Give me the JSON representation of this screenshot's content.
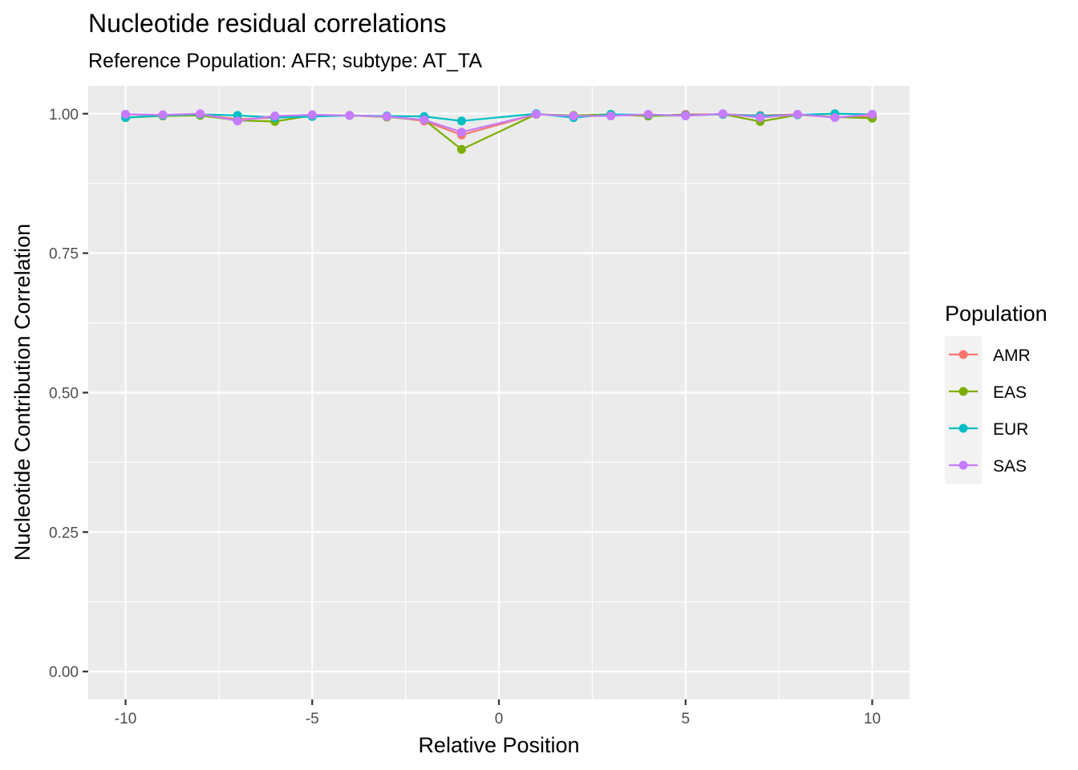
{
  "chart_data": {
    "type": "line",
    "title": "Nucleotide residual correlations",
    "subtitle": "Reference Population: AFR; subtype: AT_TA",
    "xlabel": "Relative Position",
    "ylabel": "Nucleotide Contribution Correlation",
    "xlim": [
      -11,
      11
    ],
    "ylim": [
      -0.05,
      1.05
    ],
    "x_ticks": [
      -10,
      -5,
      0,
      5,
      10
    ],
    "x_tick_labels": [
      "-10",
      "-5",
      "0",
      "5",
      "10"
    ],
    "y_ticks": [
      0,
      0.25,
      0.5,
      0.75,
      1.0
    ],
    "y_tick_labels": [
      "0.00",
      "0.25",
      "0.50",
      "0.75",
      "1.00"
    ],
    "grid": true,
    "legend_title": "Population",
    "legend_position": "right",
    "x": [
      -10,
      -9,
      -8,
      -7,
      -6,
      -5,
      -4,
      -3,
      -2,
      -1,
      1,
      2,
      3,
      4,
      5,
      6,
      7,
      8,
      9,
      10
    ],
    "series": [
      {
        "name": "AMR",
        "color": "#F8766D",
        "values": [
          0.999,
          0.997,
          0.999,
          0.99,
          0.993,
          0.998,
          0.997,
          0.995,
          0.987,
          0.962,
          0.999,
          0.997,
          0.998,
          0.996,
          0.999,
          0.999,
          0.997,
          0.999,
          0.994,
          0.995
        ]
      },
      {
        "name": "EAS",
        "color": "#7CAE00",
        "values": [
          0.993,
          0.996,
          0.997,
          0.988,
          0.986,
          0.997,
          0.997,
          0.994,
          0.989,
          0.936,
          0.999,
          0.997,
          0.999,
          0.996,
          0.997,
          0.999,
          0.986,
          0.998,
          0.994,
          0.992
        ]
      },
      {
        "name": "EUR",
        "color": "#00BFC4",
        "values": [
          0.993,
          0.997,
          0.999,
          0.997,
          0.993,
          0.995,
          0.997,
          0.996,
          0.995,
          0.987,
          1.0,
          0.993,
          0.999,
          0.998,
          0.997,
          0.999,
          0.996,
          0.998,
          1.0,
          0.999
        ]
      },
      {
        "name": "SAS",
        "color": "#C77CFF",
        "values": [
          0.999,
          0.998,
          1.0,
          0.987,
          0.996,
          0.998,
          0.997,
          0.995,
          0.989,
          0.967,
          0.999,
          0.996,
          0.996,
          0.999,
          0.996,
          1.0,
          0.993,
          0.999,
          0.993,
          0.999
        ]
      }
    ]
  }
}
